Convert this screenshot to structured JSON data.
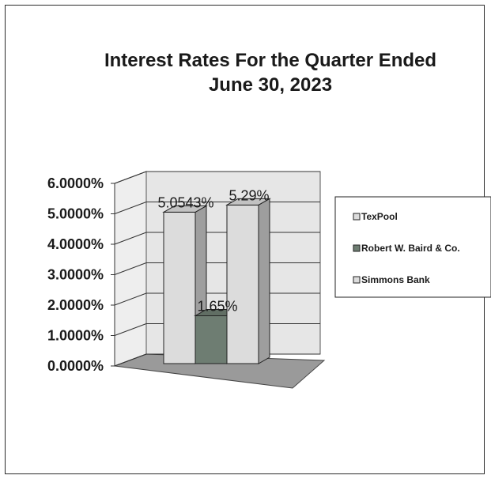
{
  "chart_data": {
    "type": "bar",
    "title_lines": [
      "Interest Rates For the Quarter Ended",
      "June 30, 2023"
    ],
    "categories": [
      ""
    ],
    "series": [
      {
        "name": "TexPool",
        "values": [
          5.0543
        ],
        "label": "5.0543%",
        "color": "#dcdcdc"
      },
      {
        "name": "Robert W. Baird & Co.",
        "values": [
          1.65
        ],
        "label": "1.65%",
        "color": "#6e7d72"
      },
      {
        "name": "Simmons Bank",
        "values": [
          5.29
        ],
        "label": "5.29%",
        "color": "#dcdcdc"
      }
    ],
    "ylim": [
      0,
      6
    ],
    "y_ticks": [
      {
        "value": 0,
        "label": "0.0000%"
      },
      {
        "value": 1,
        "label": "1.0000%"
      },
      {
        "value": 2,
        "label": "2.0000%"
      },
      {
        "value": 3,
        "label": "3.0000%"
      },
      {
        "value": 4,
        "label": "4.0000%"
      },
      {
        "value": 5,
        "label": "5.0000%"
      },
      {
        "value": 6,
        "label": "6.0000%"
      }
    ],
    "grid": true,
    "legend_position": "right",
    "style": "3d-clustered-column"
  }
}
